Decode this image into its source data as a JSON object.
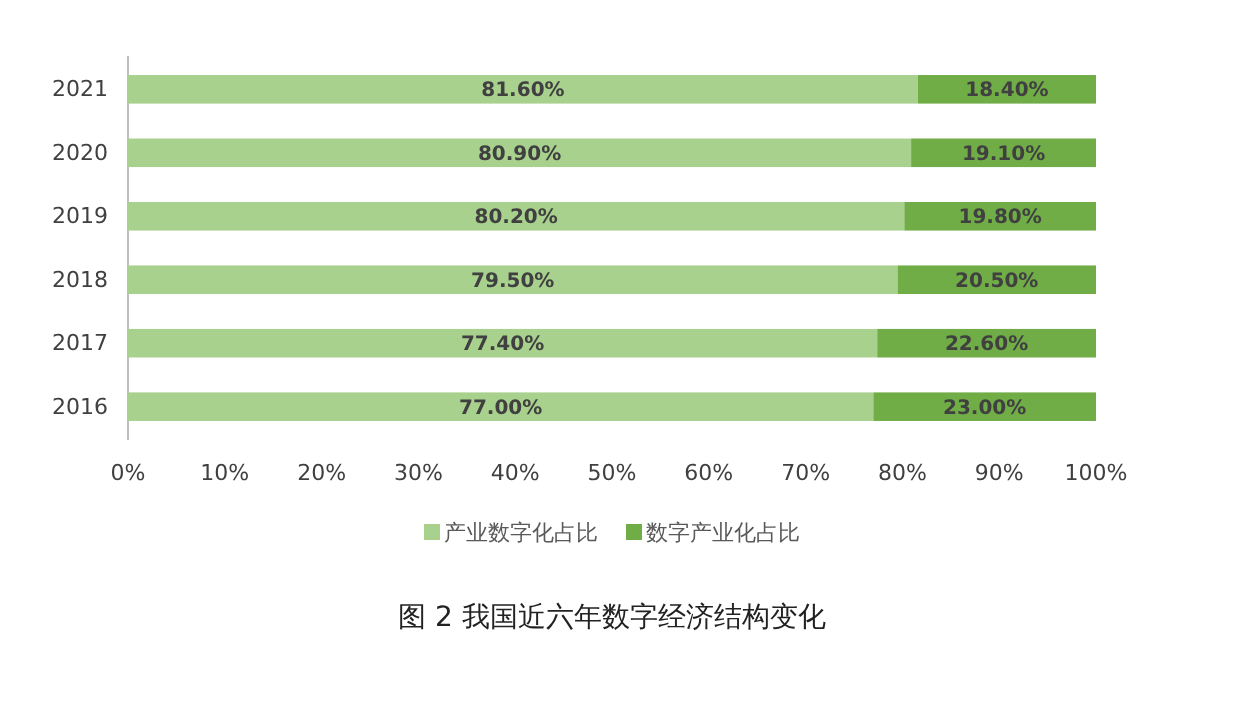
{
  "chart_data": {
    "type": "bar",
    "orientation": "horizontal",
    "stacked": true,
    "title": "图 2  我国近六年数字经济结构变化",
    "categories": [
      "2021",
      "2020",
      "2019",
      "2018",
      "2017",
      "2016"
    ],
    "series": [
      {
        "name": "产业数字化占比",
        "color": "#a9d18e",
        "values": [
          81.6,
          80.9,
          80.2,
          79.5,
          77.4,
          77.0
        ],
        "value_labels": [
          "81.60%",
          "80.90%",
          "80.20%",
          "79.50%",
          "77.40%",
          "77.00%"
        ]
      },
      {
        "name": "数字产业化占比",
        "color": "#70ad47",
        "values": [
          18.4,
          19.1,
          19.8,
          20.5,
          22.6,
          23.0
        ],
        "value_labels": [
          "18.40%",
          "19.10%",
          "19.80%",
          "20.50%",
          "22.60%",
          "23.00%"
        ]
      }
    ],
    "xlim": [
      0,
      100
    ],
    "xticks": [
      {
        "value": 0,
        "label": "0%"
      },
      {
        "value": 10,
        "label": "10%"
      },
      {
        "value": 20,
        "label": "20%"
      },
      {
        "value": 30,
        "label": "30%"
      },
      {
        "value": 40,
        "label": "40%"
      },
      {
        "value": 50,
        "label": "50%"
      },
      {
        "value": 60,
        "label": "60%"
      },
      {
        "value": 70,
        "label": "70%"
      },
      {
        "value": 80,
        "label": "80%"
      },
      {
        "value": 90,
        "label": "90%"
      },
      {
        "value": 100,
        "label": "100%"
      }
    ],
    "legend": "bottom",
    "grid": false
  }
}
